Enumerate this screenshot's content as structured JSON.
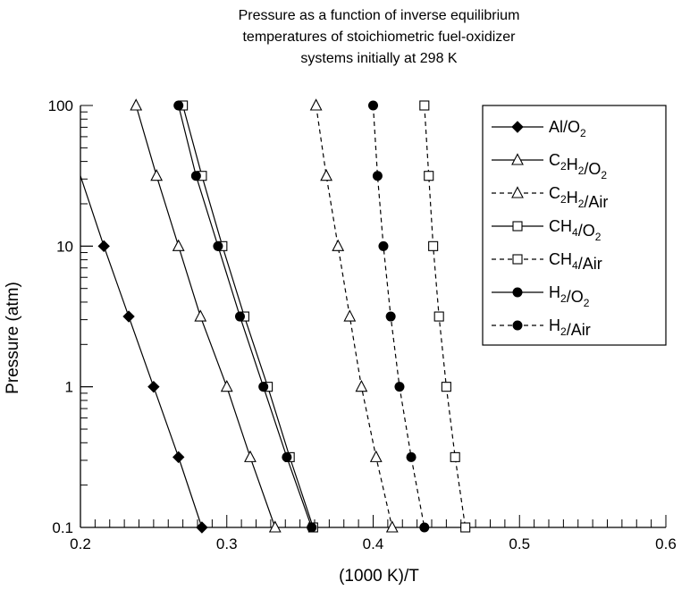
{
  "chart_data": {
    "type": "line",
    "title_lines": [
      "Pressure as a function of inverse equilibrium",
      "temperatures of stoichiometric fuel-oxidizer",
      "systems initially at 298 K"
    ],
    "xlabel": "(1000 K)/T",
    "ylabel": "Pressure (atm)",
    "xlim": [
      0.2,
      0.6
    ],
    "ylim": [
      0.1,
      100
    ],
    "yscale": "log",
    "x_ticks": [
      "0.2",
      "0.3",
      "0.4",
      "0.5",
      "0.6"
    ],
    "y_ticks": [
      "0.1",
      "1",
      "10",
      "100"
    ],
    "grid": false,
    "legend_position": "top-right",
    "series": [
      {
        "name": "Al/O2",
        "legend": {
          "main": "Al/O",
          "sub": "2",
          "rest": ""
        },
        "marker": "diamond-filled",
        "dashed": false,
        "x": [
          0.2,
          0.216,
          0.233,
          0.25,
          0.267,
          0.283
        ],
        "y": [
          31.6,
          10,
          3.16,
          1,
          0.316,
          0.1
        ],
        "marker_points": [
          1,
          2,
          3,
          4,
          5
        ]
      },
      {
        "name": "C2H2/O2",
        "legend": {
          "parts": [
            "C",
            "2",
            "H",
            "2",
            "/O",
            "2"
          ]
        },
        "marker": "triangle-open",
        "dashed": false,
        "x": [
          0.238,
          0.252,
          0.267,
          0.282,
          0.3,
          0.316,
          0.333
        ],
        "y": [
          100,
          31.6,
          10,
          3.16,
          1,
          0.316,
          0.1
        ]
      },
      {
        "name": "C2H2/Air",
        "legend": {
          "parts": [
            "C",
            "2",
            "H",
            "2",
            "/Air",
            ""
          ]
        },
        "marker": "triangle-open",
        "dashed": true,
        "x": [
          0.361,
          0.368,
          0.376,
          0.384,
          0.392,
          0.402,
          0.413
        ],
        "y": [
          100,
          31.6,
          10,
          3.16,
          1,
          0.316,
          0.1
        ]
      },
      {
        "name": "CH4/O2",
        "legend": {
          "parts": [
            "CH",
            "4",
            "/O",
            "2"
          ]
        },
        "marker": "square-open",
        "dashed": false,
        "x": [
          0.27,
          0.283,
          0.297,
          0.312,
          0.328,
          0.343,
          0.359
        ],
        "y": [
          100,
          31.6,
          10,
          3.16,
          1,
          0.316,
          0.1
        ]
      },
      {
        "name": "CH4/Air",
        "legend": {
          "parts": [
            "CH",
            "4",
            "/Air",
            ""
          ]
        },
        "marker": "square-open",
        "dashed": true,
        "x": [
          0.435,
          0.438,
          0.441,
          0.445,
          0.45,
          0.456,
          0.463
        ],
        "y": [
          100,
          31.6,
          10,
          3.16,
          1,
          0.316,
          0.1
        ]
      },
      {
        "name": "H2/O2",
        "legend": {
          "parts": [
            "H",
            "2",
            "/O",
            "2"
          ]
        },
        "marker": "circle-filled",
        "dashed": false,
        "x": [
          0.267,
          0.279,
          0.294,
          0.309,
          0.325,
          0.341,
          0.358
        ],
        "y": [
          100,
          31.6,
          10,
          3.16,
          1,
          0.316,
          0.1
        ]
      },
      {
        "name": "H2/Air",
        "legend": {
          "parts": [
            "H",
            "2",
            "/Air",
            ""
          ]
        },
        "marker": "circle-filled",
        "dashed": true,
        "x": [
          0.4,
          0.403,
          0.407,
          0.412,
          0.418,
          0.426,
          0.435
        ],
        "y": [
          100,
          31.6,
          10,
          3.16,
          1,
          0.316,
          0.1
        ]
      }
    ]
  }
}
